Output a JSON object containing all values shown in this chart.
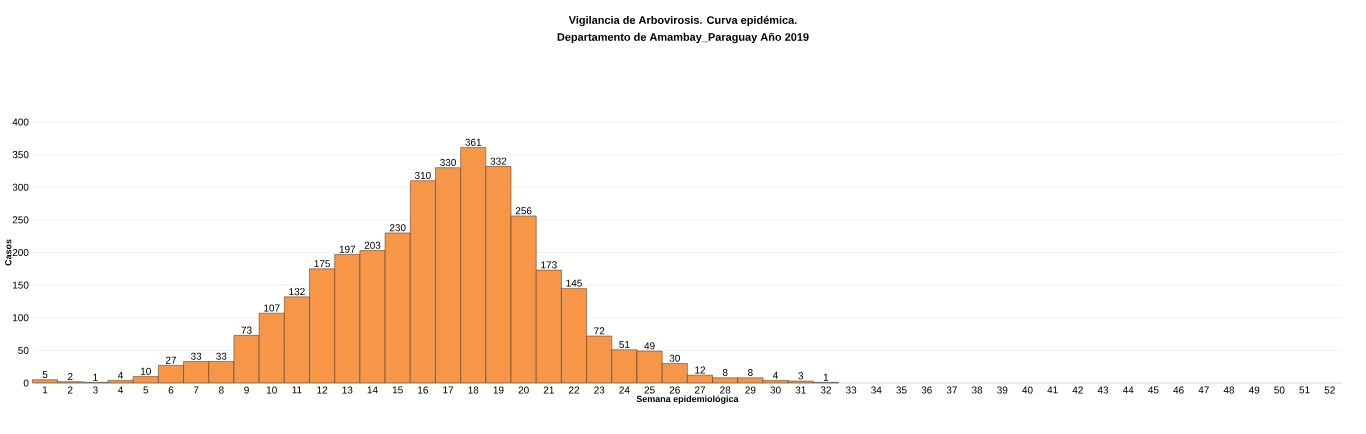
{
  "chart_data": {
    "type": "bar",
    "title": "Vigilancia de Arbovirosis. Curva epidémica.",
    "subtitle": "Departamento de Amambay_Paraguay Año 2019",
    "xlabel": "Semana epidemiológica",
    "ylabel": "Casos",
    "categories": [
      "1",
      "2",
      "3",
      "4",
      "5",
      "6",
      "7",
      "8",
      "9",
      "10",
      "11",
      "12",
      "13",
      "14",
      "15",
      "16",
      "17",
      "18",
      "19",
      "20",
      "21",
      "22",
      "23",
      "24",
      "25",
      "26",
      "27",
      "28",
      "29",
      "30",
      "31",
      "32",
      "33",
      "34",
      "35",
      "36",
      "37",
      "38",
      "39",
      "40",
      "41",
      "42",
      "43",
      "44",
      "45",
      "46",
      "47",
      "48",
      "49",
      "50",
      "51",
      "52"
    ],
    "values": [
      5,
      2,
      1,
      4,
      10,
      27,
      33,
      33,
      73,
      107,
      132,
      175,
      197,
      203,
      230,
      310,
      330,
      361,
      332,
      256,
      173,
      145,
      72,
      51,
      49,
      30,
      12,
      8,
      8,
      4,
      3,
      1,
      null,
      null,
      null,
      null,
      null,
      null,
      null,
      null,
      null,
      null,
      null,
      null,
      null,
      null,
      null,
      null,
      null,
      null,
      null,
      null
    ],
    "color": "#f79646",
    "ylim": [
      0,
      400
    ],
    "yticks": [
      0,
      50,
      100,
      150,
      200,
      250,
      300,
      350,
      400
    ],
    "grid": "y",
    "data_labels": true
  }
}
